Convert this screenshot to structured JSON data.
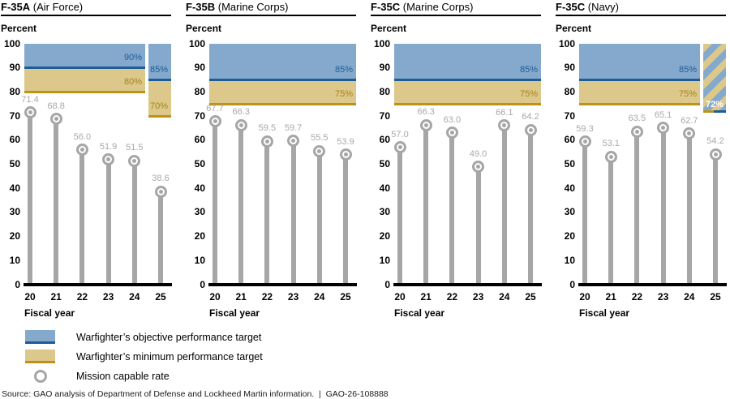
{
  "page": {
    "source_note": "Source: GAO analysis of Department of Defense and Lockheed Martin information.  |  GAO-26-108888"
  },
  "colors": {
    "objective_fill": "#84a9cc",
    "objective_line": "#1e5c97",
    "minimum_fill": "#dbc88a",
    "minimum_line": "#bf9215",
    "marker_gray": "#a6a6a6",
    "value_label_gray": "#a8a8a8",
    "axis_black": "#000000"
  },
  "legend": {
    "items": [
      {
        "swatch": "objective-band",
        "label": "Warfighter’s objective performance target"
      },
      {
        "swatch": "minimum-band",
        "label": "Warfighter’s minimum performance target"
      },
      {
        "swatch": "marker",
        "label": "Mission capable rate"
      }
    ]
  },
  "chart_data": [
    {
      "type": "lollipop",
      "title_model": "F-35A",
      "title_service": "(Air Force)",
      "ylabel": "Percent",
      "xlabel": "Fiscal year",
      "ylim": [
        0,
        100
      ],
      "ytick_step": 10,
      "categories": [
        "20",
        "21",
        "22",
        "23",
        "24",
        "25"
      ],
      "values": [
        71.4,
        68.8,
        56.0,
        51.9,
        51.5,
        38.6
      ],
      "value_labels": [
        "71.4",
        "68.8",
        "56.0",
        "51.9",
        "51.5",
        "38.6"
      ],
      "targets": {
        "main": {
          "objective": 90,
          "minimum": 80,
          "objective_label": "90%",
          "minimum_label": "80%"
        },
        "fy25": {
          "style": "solid",
          "objective": 85,
          "minimum": 70,
          "objective_label": "85%",
          "minimum_label": "70%"
        }
      }
    },
    {
      "type": "lollipop",
      "title_model": "F-35B",
      "title_service": "(Marine Corps)",
      "ylabel": "Percent",
      "xlabel": "Fiscal year",
      "ylim": [
        0,
        100
      ],
      "ytick_step": 10,
      "categories": [
        "20",
        "21",
        "22",
        "23",
        "24",
        "25"
      ],
      "values": [
        67.7,
        66.3,
        59.5,
        59.7,
        55.5,
        53.9
      ],
      "value_labels": [
        "67.7",
        "66.3",
        "59.5",
        "59.7",
        "55.5",
        "53.9"
      ],
      "targets": {
        "main": {
          "objective": 85,
          "minimum": 75,
          "objective_label": "85%",
          "minimum_label": "75%"
        },
        "fy25": null
      }
    },
    {
      "type": "lollipop",
      "title_model": "F-35C",
      "title_service": "(Marine Corps)",
      "ylabel": "Percent",
      "xlabel": "Fiscal year",
      "ylim": [
        0,
        100
      ],
      "ytick_step": 10,
      "categories": [
        "20",
        "21",
        "22",
        "23",
        "24",
        "25"
      ],
      "values": [
        57.0,
        66.3,
        63.0,
        49.0,
        66.1,
        64.2
      ],
      "value_labels": [
        "57.0",
        "66.3",
        "63.0",
        "49.0",
        "66.1",
        "64.2"
      ],
      "targets": {
        "main": {
          "objective": 85,
          "minimum": 75,
          "objective_label": "85%",
          "minimum_label": "75%"
        },
        "fy25": null
      }
    },
    {
      "type": "lollipop",
      "title_model": "F-35C",
      "title_service": "(Navy)",
      "ylabel": "Percent",
      "xlabel": "Fiscal year",
      "ylim": [
        0,
        100
      ],
      "ytick_step": 10,
      "categories": [
        "20",
        "21",
        "22",
        "23",
        "24",
        "25"
      ],
      "values": [
        59.3,
        53.1,
        63.5,
        65.1,
        62.7,
        54.2
      ],
      "value_labels": [
        "59.3",
        "53.1",
        "63.5",
        "65.1",
        "62.7",
        "54.2"
      ],
      "targets": {
        "main": {
          "objective": 85,
          "minimum": 75,
          "objective_label": "85%",
          "minimum_label": "75%"
        },
        "fy25": {
          "style": "hatched",
          "combined": 72,
          "combined_label": "72%"
        }
      }
    }
  ]
}
